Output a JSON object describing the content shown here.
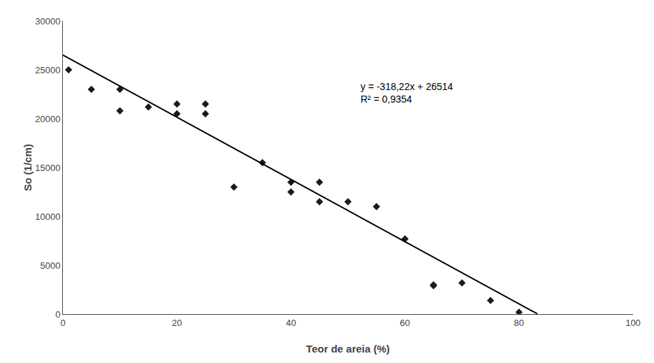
{
  "chart_data": {
    "type": "scatter",
    "xlabel": "Teor de areia (%)",
    "ylabel": "So (1/cm)",
    "series": [
      {
        "type": "scatter",
        "marker": "diamond",
        "color": "#1a1a1a",
        "x": [
          1,
          5,
          10,
          10,
          15,
          20,
          20,
          25,
          25,
          30,
          35,
          40,
          40,
          45,
          45,
          50,
          55,
          60,
          65,
          65,
          70,
          75,
          80
        ],
        "values": [
          25000,
          23000,
          20800,
          23000,
          21200,
          21500,
          20500,
          20500,
          21500,
          13000,
          15500,
          12500,
          13500,
          11500,
          13500,
          11500,
          11000,
          7700,
          3000,
          2900,
          3200,
          1400,
          200
        ]
      },
      {
        "type": "line",
        "line_style": "solid",
        "color": "#000000",
        "x": [
          0,
          83.2
        ],
        "values": [
          26514,
          38.096
        ]
      }
    ],
    "annotations": [
      "y = -318,22x + 26514\nR² = 0,9354"
    ],
    "xlim": [
      0,
      100
    ],
    "ylim": [
      0,
      30000
    ],
    "xticks": [
      0,
      20,
      40,
      60,
      80,
      100
    ],
    "yticks": [
      0,
      5000,
      10000,
      15000,
      20000,
      25000,
      30000
    ],
    "grid": false
  }
}
